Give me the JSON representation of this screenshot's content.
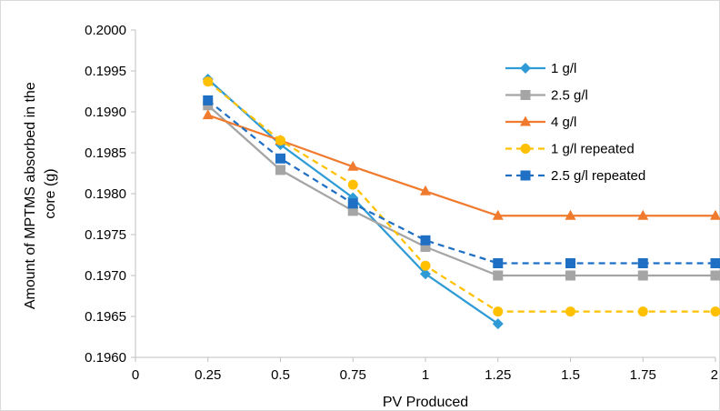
{
  "chart_data": {
    "type": "line",
    "title": "",
    "xlabel": "PV Produced",
    "ylabel_lines": [
      "Amount of MPTMS absorbed in the",
      "core (g)"
    ],
    "xlim": [
      0,
      2
    ],
    "ylim": [
      0.196,
      0.2
    ],
    "x_ticks": [
      "0",
      "0.25",
      "0.5",
      "0.75",
      "1",
      "1.25",
      "1.5",
      "1.75",
      "2"
    ],
    "y_ticks": [
      "0.1960",
      "0.1965",
      "0.1970",
      "0.1975",
      "0.1980",
      "0.1985",
      "0.1990",
      "0.1995",
      "0.2000"
    ],
    "grid": false,
    "legend_position": "right",
    "series": [
      {
        "name": "1 g/l",
        "color": "#2E9BD6",
        "marker": "diamond",
        "dashed": false,
        "x": [
          0.25,
          0.5,
          0.75,
          1,
          1.25
        ],
        "y": [
          0.1994,
          0.1986,
          0.19795,
          0.19702,
          0.19641
        ]
      },
      {
        "name": "2.5 g/l",
        "color": "#A5A5A5",
        "marker": "square",
        "dashed": false,
        "x": [
          0.25,
          0.5,
          0.75,
          1,
          1.25,
          1.5,
          1.75,
          2
        ],
        "y": [
          0.19908,
          0.19829,
          0.19779,
          0.19735,
          0.197,
          0.197,
          0.197,
          0.197
        ]
      },
      {
        "name": "4 g/l",
        "color": "#F07B2E",
        "marker": "triangle",
        "dashed": false,
        "x": [
          0.25,
          0.5,
          0.75,
          1,
          1.25,
          1.5,
          1.75,
          2
        ],
        "y": [
          0.19896,
          0.19865,
          0.19833,
          0.19803,
          0.19773,
          0.19773,
          0.19773,
          0.19773
        ]
      },
      {
        "name": "1 g/l repeated",
        "color": "#FFC000",
        "marker": "circle",
        "dashed": true,
        "x": [
          0.25,
          0.5,
          0.75,
          1,
          1.25,
          1.5,
          1.75,
          2
        ],
        "y": [
          0.19937,
          0.19865,
          0.19811,
          0.19712,
          0.19656,
          0.19656,
          0.19656,
          0.19656
        ]
      },
      {
        "name": "2.5 g/l repeated",
        "color": "#1F6FC5",
        "marker": "square",
        "dashed": true,
        "x": [
          0.25,
          0.5,
          0.75,
          1,
          1.25,
          1.5,
          1.75,
          2
        ],
        "y": [
          0.19914,
          0.19843,
          0.19788,
          0.19743,
          0.19715,
          0.19715,
          0.19715,
          0.19715
        ]
      }
    ]
  }
}
